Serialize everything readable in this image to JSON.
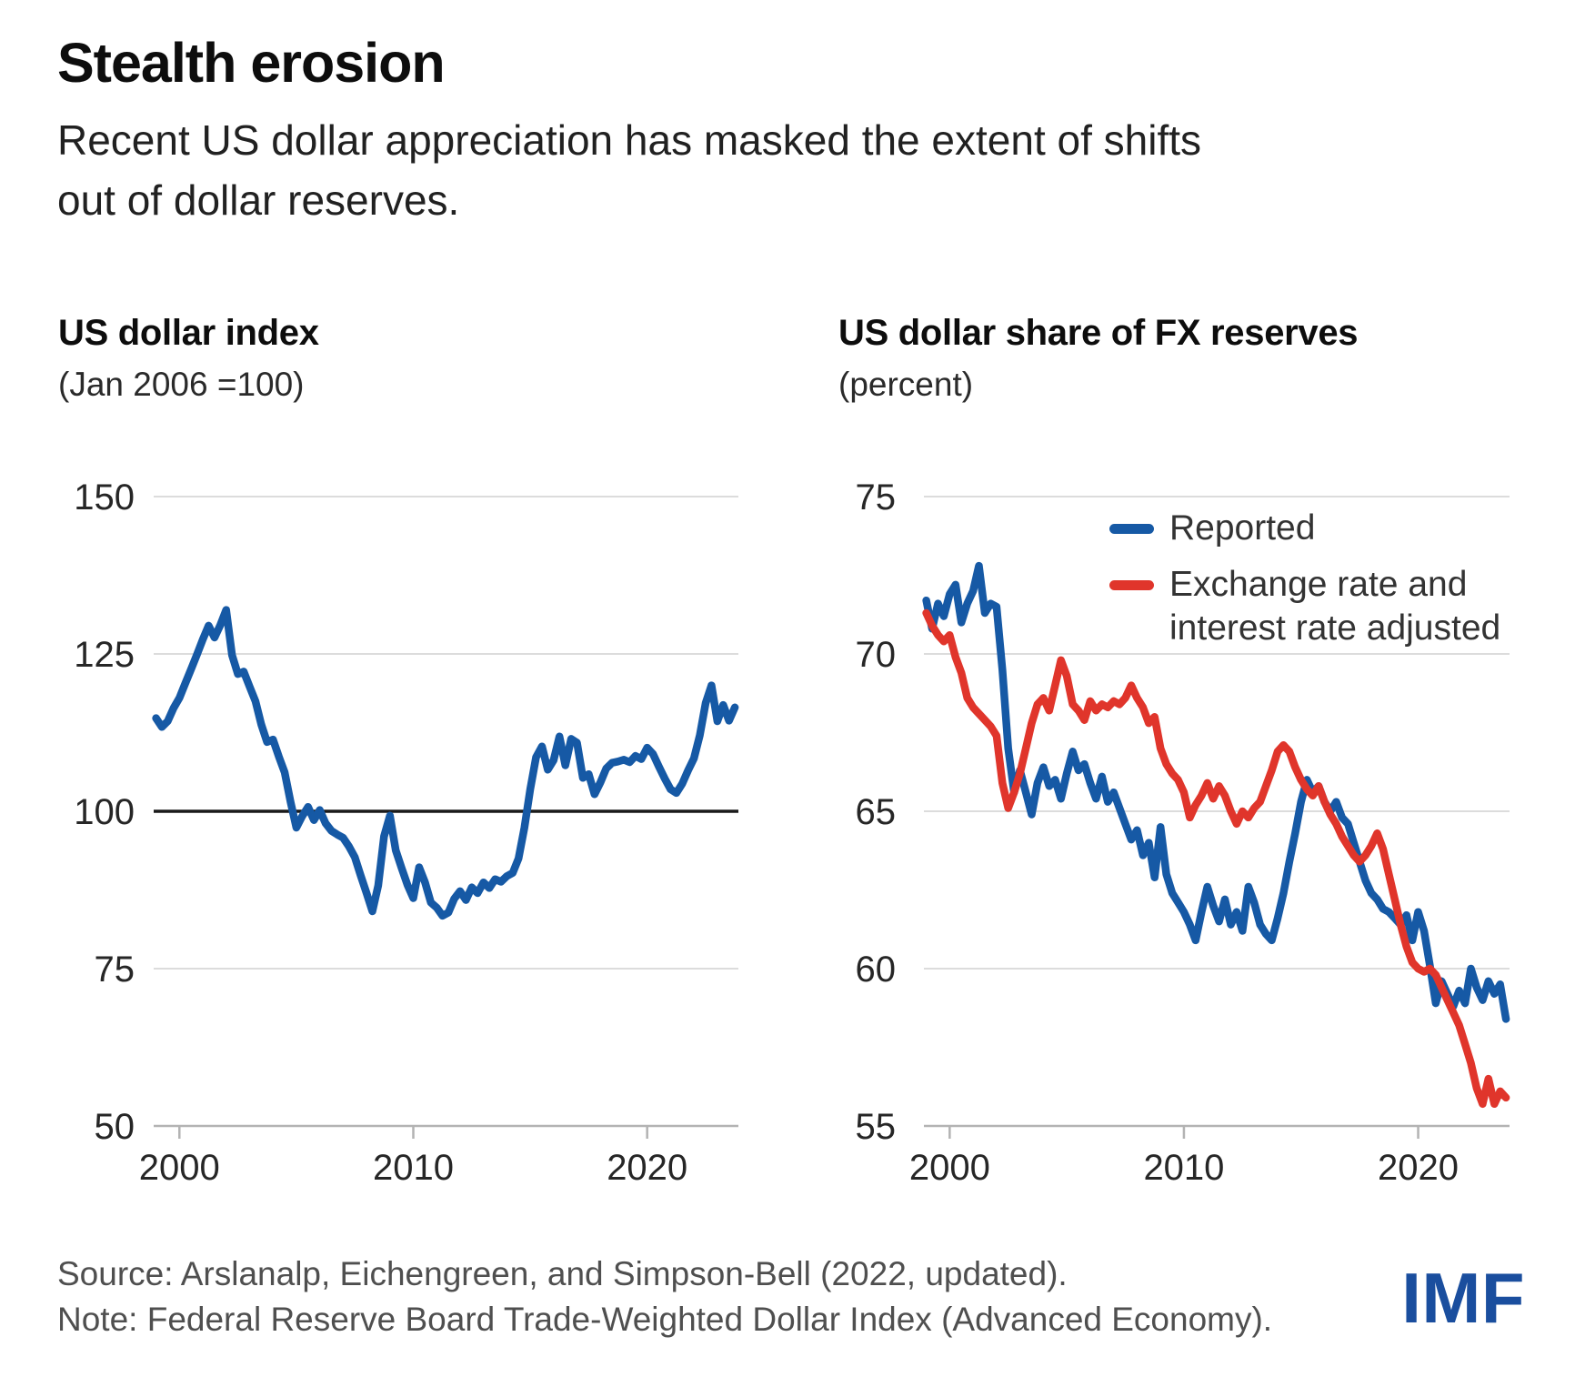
{
  "header": {
    "title": "Stealth erosion",
    "subtitle_lines": [
      "Recent US dollar appreciation has masked the extent of shifts",
      "out of dollar reserves."
    ]
  },
  "style": {
    "grid_color": "#dcdcdc",
    "axis_color": "#b3b3b3",
    "baseline_color": "#1a1a1a",
    "tick_label_color": "#262626",
    "blue": "#1659a5",
    "red": "#e0352b"
  },
  "chart_data": [
    {
      "id": "us-dollar-index",
      "type": "line",
      "title": "US dollar index",
      "subtitle": "(Jan 2006 =100)",
      "x_range": [
        1998.9,
        2023.9
      ],
      "y_range": [
        50,
        150
      ],
      "y_ticks": [
        50,
        75,
        100,
        125,
        150
      ],
      "x_ticks": [
        2000,
        2010,
        2020
      ],
      "baseline_y": 100,
      "grid": true,
      "legend_position": "none",
      "series": [
        {
          "name": "US dollar index (Jan 2006 = 100)",
          "color": "#1659a5",
          "x_start": 1999.0,
          "x_step": 0.25,
          "values": [
            114.8,
            113.4,
            114.3,
            116.4,
            118.0,
            120.3,
            122.6,
            124.9,
            127.3,
            129.5,
            127.6,
            129.6,
            132.0,
            124.8,
            121.8,
            122.2,
            119.8,
            117.5,
            113.8,
            111.0,
            111.4,
            108.7,
            106.2,
            101.5,
            97.4,
            99.2,
            100.7,
            98.6,
            100.2,
            98.1,
            96.9,
            96.3,
            95.8,
            94.4,
            92.7,
            89.8,
            87.0,
            84.1,
            88.2,
            96.0,
            99.3,
            93.8,
            91.0,
            88.3,
            86.2,
            91.1,
            88.7,
            85.5,
            84.7,
            83.4,
            83.9,
            86.1,
            87.3,
            85.9,
            87.9,
            87.0,
            88.7,
            87.8,
            89.2,
            88.8,
            89.7,
            90.2,
            92.5,
            97.4,
            103.5,
            108.6,
            110.3,
            106.6,
            108.1,
            111.9,
            107.3,
            111.5,
            110.9,
            105.3,
            105.9,
            102.7,
            104.6,
            106.8,
            107.7,
            107.9,
            108.2,
            107.8,
            108.8,
            108.3,
            110.1,
            109.1,
            107.1,
            105.2,
            103.5,
            102.9,
            104.4,
            106.5,
            108.4,
            112.1,
            117.2,
            120.0,
            114.3,
            116.9,
            114.4,
            116.5
          ]
        }
      ]
    },
    {
      "id": "usd-share-of-fx-reserves",
      "type": "line",
      "title": "US dollar share of FX reserves",
      "subtitle": "(percent)",
      "x_range": [
        1998.9,
        2023.9
      ],
      "y_range": [
        55,
        75
      ],
      "y_ticks": [
        55,
        60,
        65,
        70,
        75
      ],
      "x_ticks": [
        2000,
        2010,
        2020
      ],
      "grid": true,
      "legend_position": "top-right-inside",
      "legend": [
        {
          "color": "#1659a5",
          "lines": [
            "Reported",
            ""
          ]
        },
        {
          "color": "#e0352b",
          "lines": [
            "Exchange rate and",
            "interest rate adjusted"
          ]
        }
      ],
      "series": [
        {
          "name": "Reported",
          "color": "#1659a5",
          "x_start": 1999.0,
          "x_step": 0.25,
          "values": [
            71.7,
            70.8,
            71.6,
            71.2,
            71.9,
            72.2,
            71.0,
            71.6,
            72.0,
            72.8,
            71.3,
            71.6,
            71.5,
            69.5,
            67.0,
            65.6,
            66.3,
            65.6,
            64.9,
            65.9,
            66.4,
            65.8,
            66.0,
            65.4,
            66.2,
            66.9,
            66.3,
            66.5,
            65.9,
            65.4,
            66.1,
            65.3,
            65.6,
            65.1,
            64.6,
            64.1,
            64.4,
            63.6,
            64.0,
            62.9,
            64.5,
            63.0,
            62.4,
            62.1,
            61.8,
            61.4,
            60.9,
            61.8,
            62.6,
            62.0,
            61.5,
            62.2,
            61.4,
            61.8,
            61.2,
            62.6,
            62.1,
            61.4,
            61.1,
            60.9,
            61.6,
            62.4,
            63.4,
            64.3,
            65.3,
            66.0,
            65.6,
            65.8,
            65.3,
            65.0,
            65.3,
            64.8,
            64.6,
            64.0,
            63.4,
            62.8,
            62.4,
            62.2,
            61.9,
            61.8,
            61.6,
            61.4,
            61.7,
            60.9,
            61.8,
            61.2,
            60.1,
            58.9,
            59.6,
            59.2,
            58.8,
            59.3,
            58.9,
            60.0,
            59.4,
            59.0,
            59.6,
            59.2,
            59.5,
            58.4
          ]
        },
        {
          "name": "Exchange rate and interest rate adjusted",
          "color": "#e0352b",
          "x_start": 1999.0,
          "x_step": 0.25,
          "values": [
            71.3,
            70.9,
            70.6,
            70.4,
            70.6,
            69.9,
            69.4,
            68.6,
            68.3,
            68.1,
            67.9,
            67.7,
            67.4,
            65.9,
            65.1,
            65.6,
            66.2,
            67.0,
            67.8,
            68.4,
            68.6,
            68.2,
            69.0,
            69.8,
            69.3,
            68.4,
            68.2,
            67.9,
            68.5,
            68.2,
            68.4,
            68.3,
            68.5,
            68.4,
            68.6,
            69.0,
            68.6,
            68.3,
            67.8,
            68.0,
            67.0,
            66.5,
            66.2,
            66.0,
            65.6,
            64.8,
            65.2,
            65.5,
            65.9,
            65.4,
            65.8,
            65.5,
            65.0,
            64.6,
            65.0,
            64.8,
            65.1,
            65.3,
            65.8,
            66.3,
            66.9,
            67.1,
            66.9,
            66.4,
            66.0,
            65.7,
            65.5,
            65.8,
            65.3,
            64.9,
            64.6,
            64.2,
            63.9,
            63.6,
            63.4,
            63.6,
            63.9,
            64.3,
            63.8,
            63.0,
            62.2,
            61.4,
            60.7,
            60.2,
            60.0,
            59.9,
            60.0,
            59.8,
            59.4,
            59.0,
            58.6,
            58.2,
            57.6,
            57.0,
            56.2,
            55.7,
            56.5,
            55.7,
            56.1,
            55.9
          ]
        }
      ]
    }
  ],
  "footer": {
    "source_lines": [
      "Source: Arslanalp, Eichengreen, and Simpson-Bell (2022, updated).",
      "Note: Federal Reserve Board Trade-Weighted Dollar Index (Advanced Economy)."
    ],
    "logo": "IMF",
    "logo_color": "#1a4e9e"
  }
}
